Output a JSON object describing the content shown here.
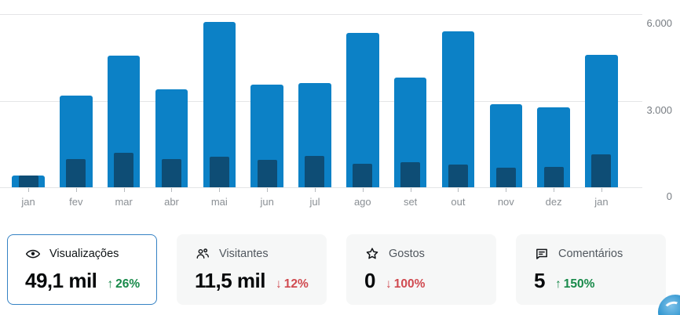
{
  "chart_data": {
    "type": "bar",
    "title": "",
    "xlabel": "",
    "ylabel": "",
    "categories": [
      "jan",
      "fev",
      "mar",
      "abr",
      "mai",
      "jun",
      "jul",
      "ago",
      "set",
      "out",
      "nov",
      "dez",
      "jan"
    ],
    "series": [
      {
        "name": "Visualizações",
        "color": "#0c81c6",
        "values": [
          410,
          3170,
          4560,
          3390,
          5730,
          3570,
          3610,
          5360,
          3790,
          5410,
          2890,
          2780,
          4580
        ]
      },
      {
        "name": "Visitantes",
        "color": "#0e4d75",
        "values": [
          400,
          980,
          1190,
          990,
          1070,
          945,
          1075,
          820,
          870,
          800,
          680,
          710,
          1140
        ]
      }
    ],
    "ylim": [
      0,
      6000
    ],
    "yticks": [
      {
        "value": 6000,
        "label": "6.000"
      },
      {
        "value": 3000,
        "label": "3.000"
      },
      {
        "value": 0,
        "label": "0"
      }
    ],
    "grid": "horizontal",
    "legend": "none"
  },
  "cards": [
    {
      "id": "views",
      "icon": "eye-icon",
      "label": "Visualizações",
      "value": "49,1 mil",
      "trend_arrow": "↑",
      "trend_value": "26%",
      "trend_direction": "up",
      "active": true
    },
    {
      "id": "visitors",
      "icon": "people-icon",
      "label": "Visitantes",
      "value": "11,5 mil",
      "trend_arrow": "↓",
      "trend_value": "12%",
      "trend_direction": "down",
      "active": false
    },
    {
      "id": "likes",
      "icon": "star-icon",
      "label": "Gostos",
      "value": "0",
      "trend_arrow": "↓",
      "trend_value": "100%",
      "trend_direction": "down",
      "active": false
    },
    {
      "id": "comments",
      "icon": "comment-icon",
      "label": "Comentários",
      "value": "5",
      "trend_arrow": "↑",
      "trend_value": "150%",
      "trend_direction": "up",
      "active": false
    }
  ],
  "colors": {
    "bar": "#0c81c6",
    "bar_inner": "#0e4d75",
    "trend_up": "#188a4a",
    "trend_down": "#d04a50",
    "grid": "#e4e5e7",
    "axis_text": "#8a8f94",
    "active_border": "#3582c4",
    "card_bg": "#f6f7f7"
  }
}
